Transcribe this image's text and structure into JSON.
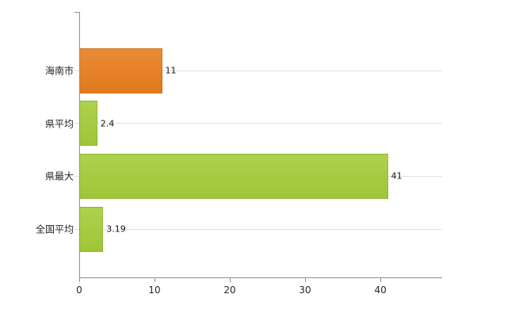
{
  "chart_data": {
    "type": "bar",
    "orientation": "horizontal",
    "title": "",
    "xlabel": "",
    "ylabel": "",
    "categories": [
      "海南市",
      "県平均",
      "県最大",
      "全国平均"
    ],
    "values": [
      11,
      2.4,
      41,
      3.19
    ],
    "value_labels": [
      "11",
      "2.4",
      "41",
      "3.19"
    ],
    "bar_colors": [
      "#e87d1e",
      "#a4cc39",
      "#a4cc39",
      "#a4cc39"
    ],
    "xlim": [
      0,
      48.2
    ],
    "x_ticks": [
      0,
      10,
      20,
      30,
      40
    ],
    "x_tick_labels": [
      "0",
      "10",
      "20",
      "30",
      "40"
    ],
    "grid": true,
    "legend": "none",
    "background": "#ffffff",
    "axis_color": "#8e8e8e",
    "gridline_color": "#e1e1e1"
  }
}
